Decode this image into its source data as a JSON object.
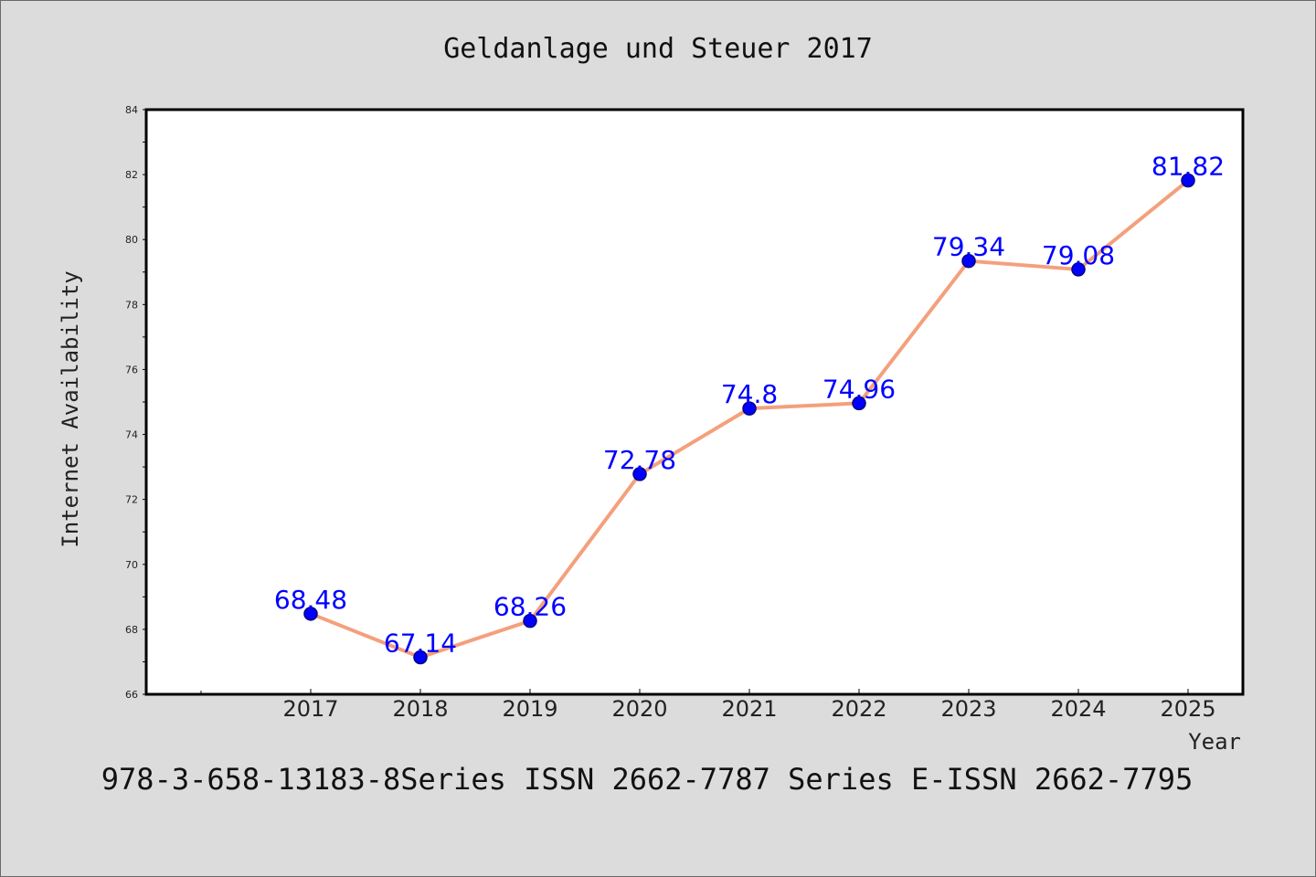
{
  "chart_data": {
    "type": "line",
    "title": "Geldanlage und Steuer 2017",
    "xlabel": "Year",
    "ylabel": "Internet Availability",
    "categories": [
      "2017",
      "2018",
      "2019",
      "2020",
      "2021",
      "2022",
      "2023",
      "2024",
      "2025"
    ],
    "values": [
      68.48,
      67.14,
      68.26,
      72.78,
      74.8,
      74.96,
      79.34,
      79.08,
      81.82
    ],
    "data_labels": [
      "68.48",
      "67.14",
      "68.26",
      "72.78",
      "74.8",
      "74.96",
      "79.34",
      "79.08",
      "81.82"
    ],
    "ylim": [
      66,
      84
    ],
    "yticks": [
      "66",
      "68",
      "70",
      "72",
      "74",
      "76",
      "78",
      "80",
      "82",
      "84"
    ],
    "grid": false,
    "colors": {
      "line": "#f4a07c",
      "marker": "#0000ff",
      "marker_edge": "#000080",
      "label": "#0000ff",
      "axes": "#000000",
      "background": "#dcdcdc",
      "plot_background": "#ffffff"
    }
  },
  "footer": {
    "text": "978-3-658-13183-8Series ISSN 2662-7787 Series E-ISSN 2662-7795"
  }
}
